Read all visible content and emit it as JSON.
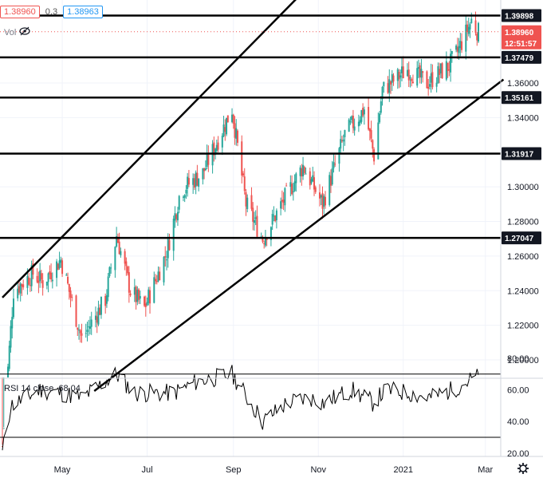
{
  "toolbar": {
    "sell_price": "1.38960",
    "spread": "0.3",
    "buy_price": "1.38963",
    "volume_label": "Vol"
  },
  "price_levels": [
    {
      "value": 1.39898,
      "label": "1.39898",
      "color": "#131722",
      "kind": "hline"
    },
    {
      "value": 1.37479,
      "label": "1.37479",
      "color": "#131722",
      "kind": "hline"
    },
    {
      "value": 1.35161,
      "label": "1.35161",
      "color": "#131722",
      "kind": "hline"
    },
    {
      "value": 1.31917,
      "label": "1.31917",
      "color": "#131722",
      "kind": "hline"
    },
    {
      "value": 1.27047,
      "label": "1.27047",
      "color": "#131722",
      "kind": "hline"
    }
  ],
  "last_price": {
    "label": "1.38960",
    "countdown": "12:51:57",
    "color": "#ef5350"
  },
  "rsi": {
    "label": "RSI 14 close",
    "value": "68.04",
    "upper": 70,
    "lower": 30,
    "ticks": [
      "80.00",
      "60.00",
      "40.00",
      "20.00"
    ]
  },
  "settings_icon": "gear-icon",
  "chart_data": {
    "type": "candlestick",
    "y_axis": {
      "range": [
        1.182,
        1.404
      ],
      "ticks": [
        "1.36000",
        "1.34000",
        "1.30000",
        "1.28000",
        "1.26000",
        "1.24000",
        "1.22000",
        "1.20000"
      ]
    },
    "x_axis": {
      "ticks": [
        "May",
        "Jul",
        "Sep",
        "Nov",
        "2021",
        "Mar"
      ]
    },
    "price_path": [
      [
        "2020-03-19",
        1.15
      ],
      [
        "2020-03-27",
        1.24
      ],
      [
        "2020-04-10",
        1.25
      ],
      [
        "2020-04-17",
        1.245
      ],
      [
        "2020-04-30",
        1.258
      ],
      [
        "2020-05-15",
        1.212
      ],
      [
        "2020-06-01",
        1.235
      ],
      [
        "2020-06-09",
        1.272
      ],
      [
        "2020-06-19",
        1.24
      ],
      [
        "2020-06-29",
        1.23
      ],
      [
        "2020-07-15",
        1.262
      ],
      [
        "2020-07-25",
        1.298
      ],
      [
        "2020-08-10",
        1.308
      ],
      [
        "2020-08-31",
        1.345
      ],
      [
        "2020-09-10",
        1.29
      ],
      [
        "2020-09-22",
        1.27
      ],
      [
        "2020-10-09",
        1.295
      ],
      [
        "2020-10-21",
        1.312
      ],
      [
        "2020-11-04",
        1.29
      ],
      [
        "2020-11-20",
        1.33
      ],
      [
        "2020-12-04",
        1.345
      ],
      [
        "2020-12-11",
        1.318
      ],
      [
        "2020-12-17",
        1.356
      ],
      [
        "2021-01-04",
        1.368
      ],
      [
        "2021-01-18",
        1.36
      ],
      [
        "2021-02-03",
        1.37
      ],
      [
        "2021-02-09",
        1.378
      ],
      [
        "2021-02-19",
        1.396
      ],
      [
        "2021-02-24",
        1.389
      ]
    ],
    "trend_lines": [
      {
        "x1": "2020-03-19",
        "y1": 1.236,
        "x2": "2021-02-27",
        "y2": 1.518
      },
      {
        "x1": "2020-05-24",
        "y1": 1.182,
        "x2": "2021-03-14",
        "y2": 1.362
      }
    ],
    "rsi_path": [
      [
        "2020-03-19",
        20
      ],
      [
        "2020-03-25",
        50
      ],
      [
        "2020-04-15",
        60
      ],
      [
        "2020-05-01",
        58
      ],
      [
        "2020-05-15",
        55
      ],
      [
        "2020-06-09",
        70
      ],
      [
        "2020-06-22",
        58
      ],
      [
        "2020-07-20",
        58
      ],
      [
        "2020-08-05",
        65
      ],
      [
        "2020-08-31",
        70
      ],
      [
        "2020-09-22",
        40
      ],
      [
        "2020-10-10",
        52
      ],
      [
        "2020-10-25",
        55
      ],
      [
        "2020-11-05",
        52
      ],
      [
        "2020-11-25",
        60
      ],
      [
        "2020-12-10",
        52
      ],
      [
        "2020-12-20",
        60
      ],
      [
        "2021-01-05",
        58
      ],
      [
        "2021-01-20",
        55
      ],
      [
        "2021-02-05",
        60
      ],
      [
        "2021-02-22",
        68
      ]
    ]
  }
}
